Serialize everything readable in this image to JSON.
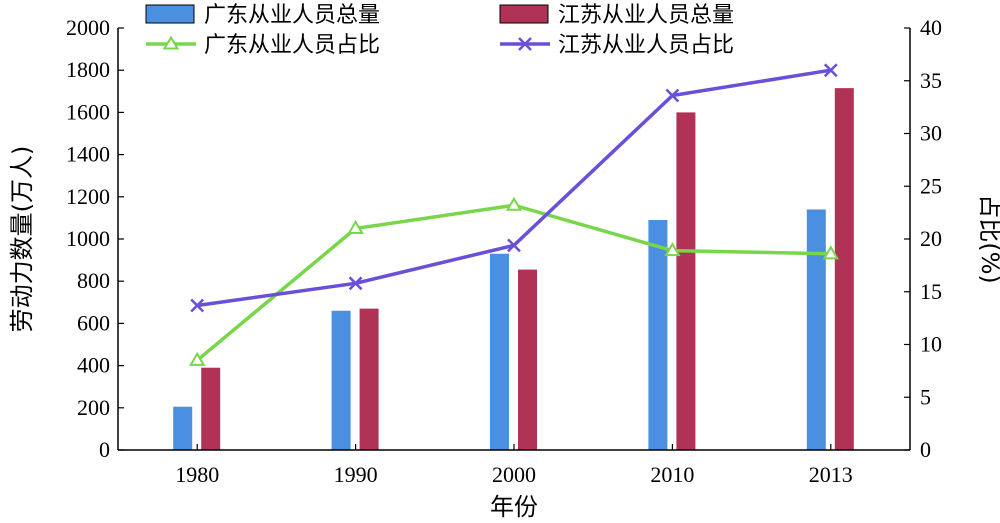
{
  "chart_data": {
    "type": "bar",
    "categories": [
      "1980",
      "1990",
      "2000",
      "2010",
      "2013"
    ],
    "xlabel": "年份",
    "ylabel_left": "劳动力数量(万人)",
    "ylabel_right": "占比(%)",
    "ylim_left": [
      0,
      2000
    ],
    "ylim_right": [
      0,
      40
    ],
    "yticks_left": [
      "0",
      "200",
      "400",
      "600",
      "800",
      "1000",
      "1200",
      "1400",
      "1600",
      "1800",
      "2000"
    ],
    "yticks_right": [
      "0",
      "5",
      "10",
      "15",
      "20",
      "25",
      "30",
      "35",
      "40"
    ],
    "bar_series": [
      {
        "name": "广东从业人员总量",
        "color": "#4a8fe0",
        "values": [
          205,
          660,
          930,
          1090,
          1140
        ]
      },
      {
        "name": "江苏从业人员总量",
        "color": "#b03255",
        "values": [
          390,
          670,
          855,
          1600,
          1715
        ]
      }
    ],
    "line_series": [
      {
        "name": "广东从业人员占比",
        "color": "#77d64a",
        "marker": "triangle",
        "axis": "right",
        "values": [
          8.5,
          21.0,
          23.2,
          18.9,
          18.6
        ]
      },
      {
        "name": "江苏从业人员占比",
        "color": "#6a4fd8",
        "marker": "x",
        "axis": "right",
        "values": [
          13.7,
          15.8,
          19.4,
          33.6,
          36.0
        ]
      }
    ],
    "legend_position": "top"
  }
}
